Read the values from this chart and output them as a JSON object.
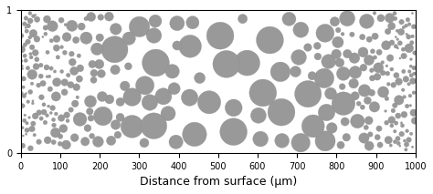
{
  "title": "",
  "xlabel": "Distance from surface (μm)",
  "ylabel": "",
  "xlim": [
    0,
    1000
  ],
  "ylim": [
    0,
    1
  ],
  "yticks": [
    0,
    1
  ],
  "xticks": [
    0,
    100,
    200,
    300,
    400,
    500,
    600,
    700,
    800,
    900,
    1000
  ],
  "circle_color": "#999999",
  "circle_edge_color": "#888888",
  "background_color": "#ffffff",
  "seed": 42,
  "n_circles": 350,
  "figsize": [
    4.74,
    2.13
  ],
  "dpi": 100
}
